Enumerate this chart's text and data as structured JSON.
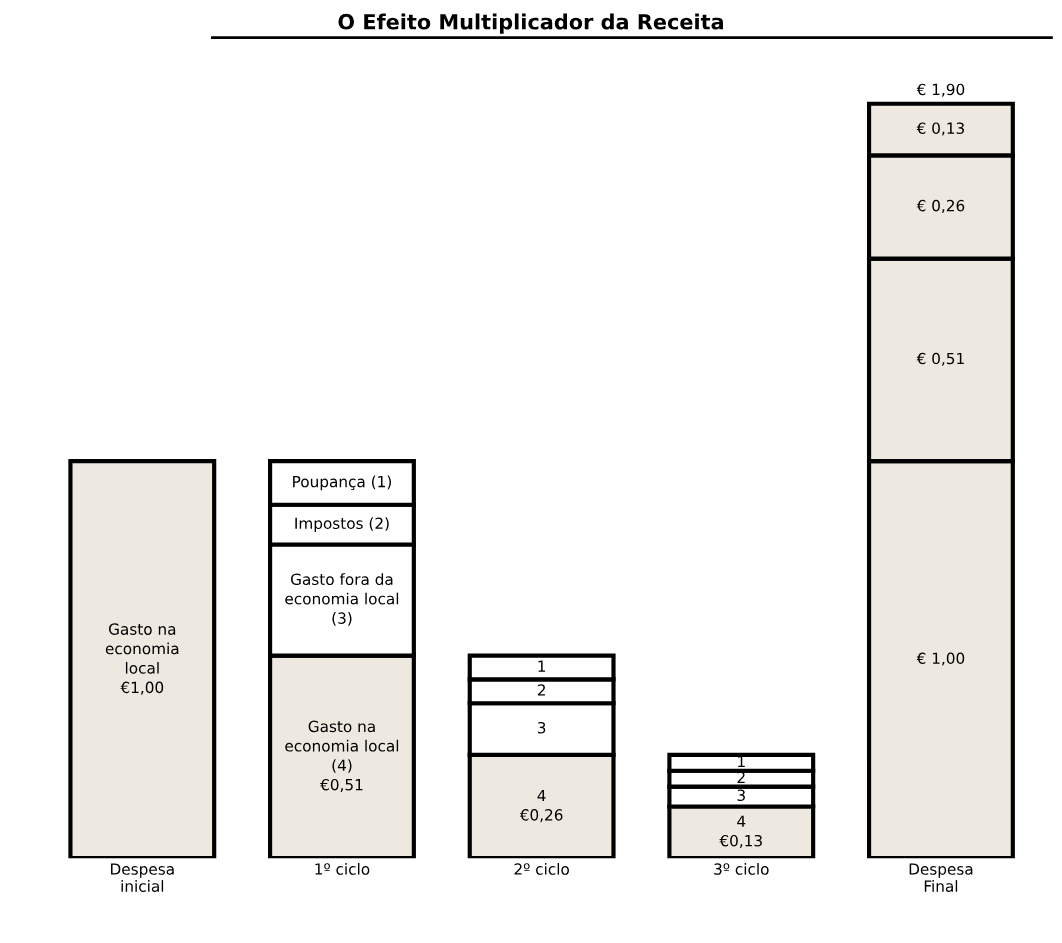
{
  "chart_data": {
    "type": "bar",
    "title": "O Efeito Multiplicador da Receita",
    "stacked": true,
    "tick_labels": "x",
    "categories": [
      "Despesa\ninicial",
      "1º ciclo",
      "2º ciclo",
      "3º ciclo",
      "Despesa\nFinal"
    ],
    "series": [
      {
        "colors": [
          "#ede9e0",
          "#ede9e0",
          "#ede9e0",
          "#ede9e0",
          "#ede9e0"
        ],
        "values": [
          1.0,
          0.51,
          0.26,
          0.13,
          1.0
        ],
        "value_labels": [
          "€1,00",
          "€0,51",
          "€0,26",
          "€0,13",
          "€ 1,00"
        ]
      },
      {
        "colors": [
          "#ffffff",
          "#ffffff",
          "#ffffff",
          "#ffffff",
          "#ede9e0"
        ],
        "values": [
          null,
          0.28,
          0.13,
          0.05,
          0.51
        ],
        "value_labels": [
          null,
          null,
          null,
          null,
          "€ 0,51"
        ]
      },
      {
        "colors": [
          "#ffffff",
          "#ffffff",
          "#ffffff",
          "#ffffff",
          "#ede9e0"
        ],
        "values": [
          null,
          0.1,
          0.06,
          0.04,
          0.26
        ],
        "value_labels": [
          null,
          null,
          null,
          null,
          "€ 0,26"
        ]
      },
      {
        "colors": [
          "#ffffff",
          "#ffffff",
          "#ffffff",
          "#ffffff",
          "#ede9e0"
        ],
        "values": [
          null,
          0.11,
          0.06,
          0.04,
          0.13
        ],
        "value_labels": [
          null,
          null,
          null,
          null,
          "€ 0,13"
        ]
      }
    ],
    "totals": [
      null,
      null,
      null,
      null,
      "€ 1,90"
    ],
    "annotations": [
      "Gasto na\neconomia\nlocal",
      "Gasto na\neconomia local\n(4)",
      "Gasto fora da\neconomia local\n(3)",
      "Impostos (2)",
      "Poupança (1)",
      "4",
      "3",
      "2",
      "1",
      "4",
      "3",
      "2",
      "1"
    ]
  }
}
